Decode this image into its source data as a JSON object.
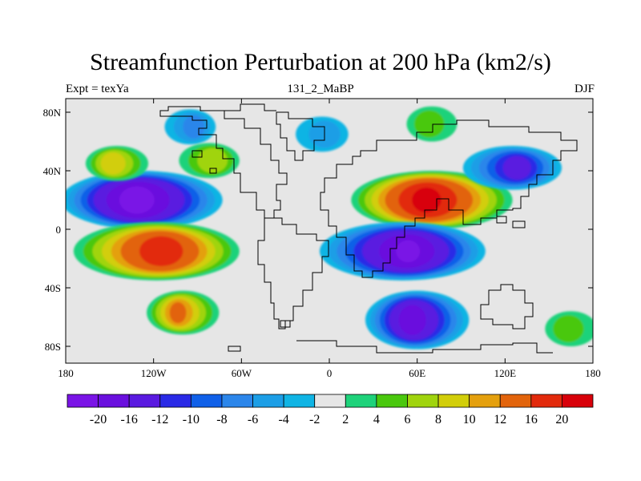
{
  "chart_data": {
    "type": "heatmap",
    "title": "Streamfunction Perturbation at 200 hPa (km2/s)",
    "subtitle_left": "Expt = texYa",
    "subtitle_center": "131_2_MaBP",
    "subtitle_right": "DJF",
    "xlim": [
      -180,
      180
    ],
    "ylim": [
      -90,
      90
    ],
    "x_ticks": [
      {
        "value": -180,
        "label": "180"
      },
      {
        "value": -120,
        "label": "120W"
      },
      {
        "value": -60,
        "label": "60W"
      },
      {
        "value": 0,
        "label": "0"
      },
      {
        "value": 60,
        "label": "60E"
      },
      {
        "value": 120,
        "label": "120E"
      },
      {
        "value": 180,
        "label": "180"
      }
    ],
    "y_ticks": [
      {
        "value": 80,
        "label": "80N"
      },
      {
        "value": 40,
        "label": "40N"
      },
      {
        "value": 0,
        "label": "0"
      },
      {
        "value": -40,
        "label": "40S"
      },
      {
        "value": -80,
        "label": "80S"
      }
    ],
    "colorbar": {
      "labels": [
        "-20",
        "-16",
        "-12",
        "-10",
        "-8",
        "-6",
        "-4",
        "-2",
        "2",
        "4",
        "6",
        "8",
        "10",
        "12",
        "16",
        "20"
      ],
      "colors": [
        "#7a14e6",
        "#6a10de",
        "#5a1ae0",
        "#2a2ae6",
        "#1060e8",
        "#2c86ea",
        "#1c9ee6",
        "#10b4e4",
        "#e6e6e6",
        "#1ed27a",
        "#4ac80e",
        "#a0d40e",
        "#d2ce0a",
        "#e4a00e",
        "#e2640c",
        "#e22a0c",
        "#d8000a"
      ]
    },
    "features": [
      {
        "lon": -128,
        "lat": 20,
        "value": -22
      },
      {
        "lon": -118,
        "lat": -15,
        "value": 18
      },
      {
        "lon": -100,
        "lat": -57,
        "value": 12
      },
      {
        "lon": -95,
        "lat": 70,
        "value": -6
      },
      {
        "lon": -145,
        "lat": 45,
        "value": 9
      },
      {
        "lon": -82,
        "lat": 47,
        "value": 7
      },
      {
        "lon": 70,
        "lat": 20,
        "value": 21
      },
      {
        "lon": 50,
        "lat": -15,
        "value": -20
      },
      {
        "lon": 60,
        "lat": -62,
        "value": -18
      },
      {
        "lon": 125,
        "lat": 42,
        "value": -13
      },
      {
        "lon": 70,
        "lat": 72,
        "value": 4
      },
      {
        "lon": -5,
        "lat": 65,
        "value": -4
      },
      {
        "lon": 165,
        "lat": -68,
        "value": 4
      }
    ]
  }
}
